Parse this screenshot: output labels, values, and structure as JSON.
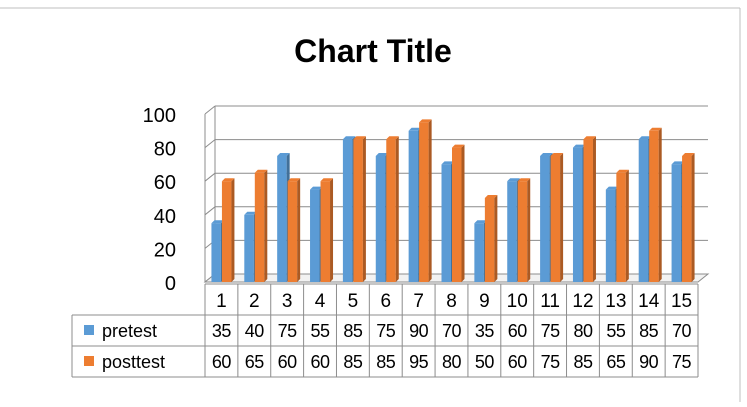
{
  "chart_data": {
    "type": "bar",
    "title": "Chart Title",
    "categories": [
      "1",
      "2",
      "3",
      "4",
      "5",
      "6",
      "7",
      "8",
      "9",
      "10",
      "11",
      "12",
      "13",
      "14",
      "15"
    ],
    "series": [
      {
        "name": "pretest",
        "color": "#5B9BD5",
        "values": [
          35,
          40,
          75,
          55,
          85,
          75,
          90,
          70,
          35,
          60,
          75,
          80,
          55,
          85,
          70
        ]
      },
      {
        "name": "posttest",
        "color": "#ED7D31",
        "values": [
          60,
          65,
          60,
          60,
          85,
          85,
          95,
          80,
          50,
          60,
          75,
          85,
          65,
          90,
          75
        ]
      }
    ],
    "yticks": [
      "0",
      "20",
      "40",
      "60",
      "80",
      "100"
    ],
    "ylim": [
      0,
      100
    ],
    "grid": true,
    "legend": "data-table"
  }
}
